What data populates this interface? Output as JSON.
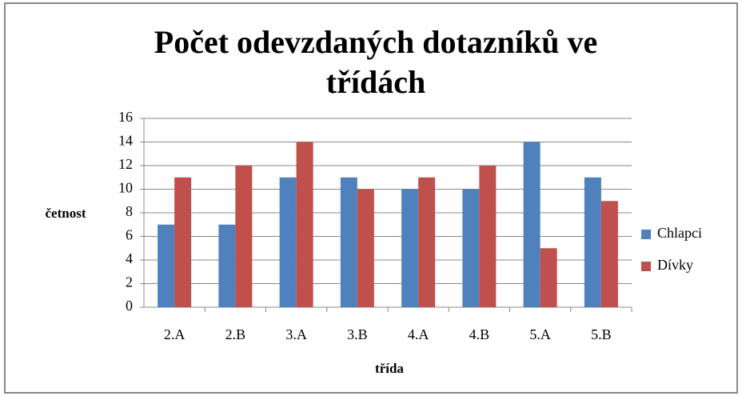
{
  "chart_data": {
    "type": "bar",
    "title": "Počet odevzdaných dotazníků ve třídách",
    "x_label": "třída",
    "y_label": "četnost",
    "categories": [
      "2.A",
      "2.B",
      "3.A",
      "3.B",
      "4.A",
      "4.B",
      "5.A",
      "5.B"
    ],
    "series": [
      {
        "name": "Chlapci",
        "color": "#4f81bd",
        "values": [
          7,
          7,
          11,
          11,
          10,
          10,
          14,
          11
        ]
      },
      {
        "name": "Dívky",
        "color": "#c0504d",
        "values": [
          11,
          12,
          14,
          10,
          11,
          12,
          5,
          9
        ]
      }
    ],
    "ylim": [
      0,
      16
    ],
    "yticks": [
      0,
      2,
      4,
      6,
      8,
      10,
      12,
      14,
      16
    ],
    "grid": true,
    "legend": "right"
  }
}
